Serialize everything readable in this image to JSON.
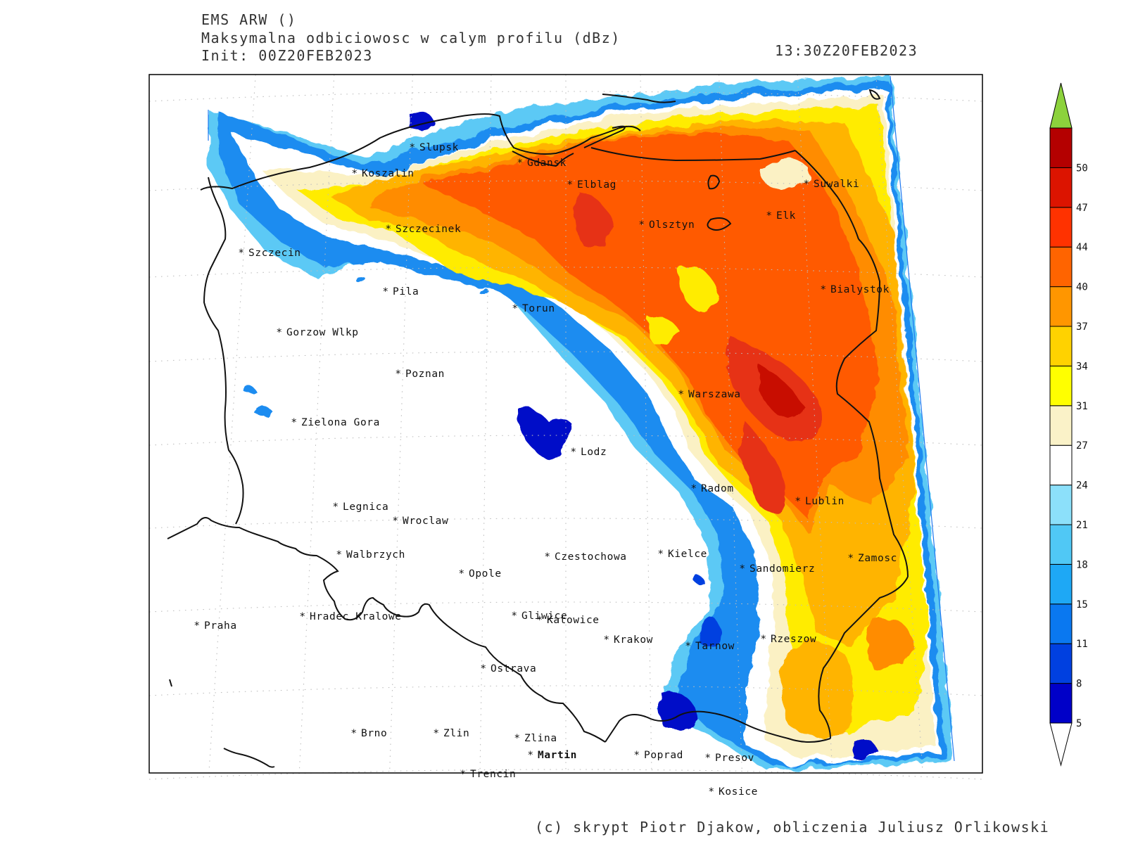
{
  "header": {
    "model": "EMS ARW ()",
    "product": "Maksymalna odbiciowosc w calym profilu (dBz)",
    "init": "Init: 00Z20FEB2023",
    "valid": "13:30Z20FEB2023"
  },
  "credit": "(c) skrypt Piotr Djakow, obliczenia Juliusz Orlikowski",
  "colorbar": {
    "levels": [
      "5",
      "8",
      "11",
      "15",
      "18",
      "21",
      "24",
      "27",
      "31",
      "34",
      "37",
      "40",
      "44",
      "47",
      "50"
    ],
    "colors": [
      "#0000c8",
      "#0040e0",
      "#0a78f0",
      "#1ea8f5",
      "#50c8f5",
      "#8ce0fa",
      "#ffffff",
      "#faf2c8",
      "#ffff00",
      "#ffd200",
      "#ff9600",
      "#ff6400",
      "#ff3200",
      "#dc1400",
      "#b40000"
    ],
    "over_color": "#8cd23c",
    "under_color": "#ffffff"
  },
  "cities": [
    {
      "name": "Slupsk"
    },
    {
      "name": "Gdansk"
    },
    {
      "name": "Koszalin"
    },
    {
      "name": "Elblag"
    },
    {
      "name": "Suwalki"
    },
    {
      "name": "Elk"
    },
    {
      "name": "Olsztyn"
    },
    {
      "name": "Szczecinek"
    },
    {
      "name": "Szczecin"
    },
    {
      "name": "Pila"
    },
    {
      "name": "Bialystok"
    },
    {
      "name": "Torun"
    },
    {
      "name": "Gorzow Wlkp"
    },
    {
      "name": "Poznan"
    },
    {
      "name": "Warszawa"
    },
    {
      "name": "Zielona Gora"
    },
    {
      "name": "Lodz"
    },
    {
      "name": "Radom"
    },
    {
      "name": "Lublin"
    },
    {
      "name": "Legnica"
    },
    {
      "name": "Wroclaw"
    },
    {
      "name": "Walbrzych"
    },
    {
      "name": "Czestochowa"
    },
    {
      "name": "Kielce"
    },
    {
      "name": "Zamosc"
    },
    {
      "name": "Sandomierz"
    },
    {
      "name": "Opole"
    },
    {
      "name": "Praha"
    },
    {
      "name": "Hradec Kralowe"
    },
    {
      "name": "Gliwice"
    },
    {
      "name": "Katowice"
    },
    {
      "name": "Krakow"
    },
    {
      "name": "Tarnow"
    },
    {
      "name": "Rzeszow"
    },
    {
      "name": "Ostrava"
    },
    {
      "name": "Brno"
    },
    {
      "name": "Zlin"
    },
    {
      "name": "Zlina"
    },
    {
      "name": "Martin"
    },
    {
      "name": "Poprad"
    },
    {
      "name": "Presov"
    },
    {
      "name": "Trencin"
    },
    {
      "name": "Kosice"
    }
  ]
}
